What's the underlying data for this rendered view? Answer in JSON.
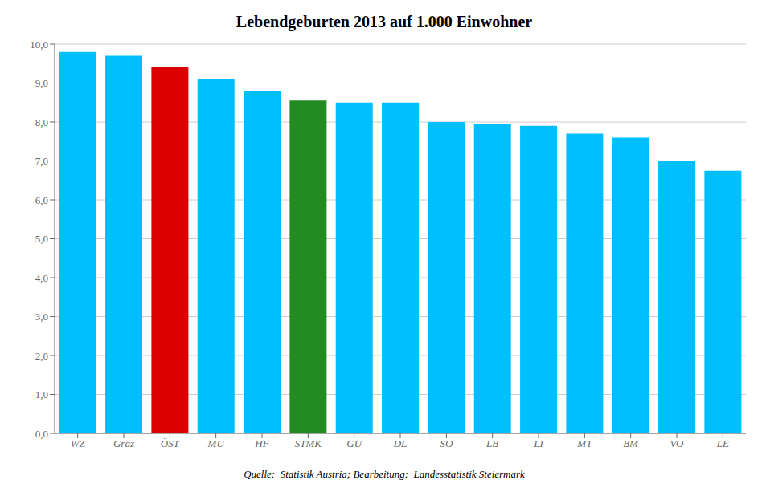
{
  "chart_data": {
    "type": "bar",
    "title": "Lebendgeburten 2013 auf 1.000 Einwohner",
    "categories": [
      "WZ",
      "Graz",
      "ÖST",
      "MU",
      "HF",
      "STMK",
      "GU",
      "DL",
      "SO",
      "LB",
      "LI",
      "MT",
      "BM",
      "VO",
      "LE"
    ],
    "values": [
      9.8,
      9.7,
      9.4,
      9.1,
      8.8,
      8.55,
      8.5,
      8.5,
      8.0,
      7.95,
      7.9,
      7.7,
      7.6,
      7.0,
      6.75
    ],
    "colors": [
      "#00BFFF",
      "#00BFFF",
      "#DD0000",
      "#00BFFF",
      "#00BFFF",
      "#228B22",
      "#00BFFF",
      "#00BFFF",
      "#00BFFF",
      "#00BFFF",
      "#00BFFF",
      "#00BFFF",
      "#00BFFF",
      "#00BFFF",
      "#00BFFF"
    ],
    "ylim": [
      0,
      10.0
    ],
    "yticks": [
      {
        "value": 0.0,
        "label": "0,0"
      },
      {
        "value": 1.0,
        "label": "1,0"
      },
      {
        "value": 2.0,
        "label": "2,0"
      },
      {
        "value": 3.0,
        "label": "3,0"
      },
      {
        "value": 4.0,
        "label": "4,0"
      },
      {
        "value": 5.0,
        "label": "5,0"
      },
      {
        "value": 6.0,
        "label": "6,0"
      },
      {
        "value": 7.0,
        "label": "7,0"
      },
      {
        "value": 8.0,
        "label": "8,0"
      },
      {
        "value": 9.0,
        "label": "9,0"
      },
      {
        "value": 10.0,
        "label": "10,0"
      }
    ],
    "grid": true,
    "annotations": [
      "Quelle:  Statistik Austria; Bearbeitung:  Landesstatistik Steiermark"
    ]
  }
}
